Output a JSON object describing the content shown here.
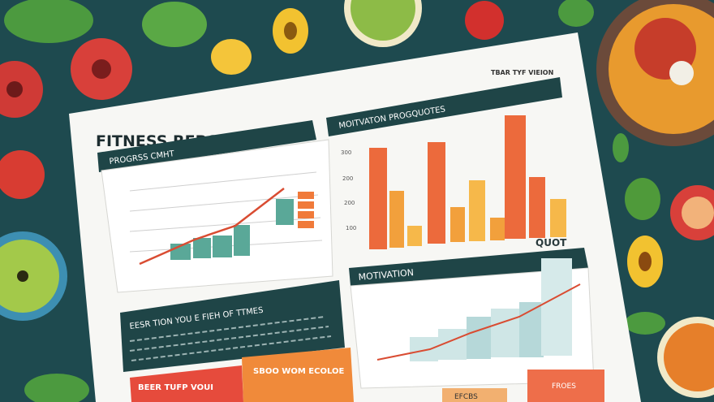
{
  "header": {
    "title": "FITNESS REPORT",
    "corner_note": "TBAR TYF VIEION"
  },
  "progress_panel": {
    "title": "PROGRSS CMHT"
  },
  "quotes_panel": {
    "title": "MOITVATON PROGQUOTES",
    "side_label": "QUOT",
    "axis_labels": [
      "300",
      "200",
      "200",
      "100"
    ]
  },
  "motivation_panel": {
    "title": "MOTIVATION"
  },
  "text_box": {
    "heading": "EESR TION YOU E FIEH OF TTMES"
  },
  "cards": [
    "BEER TUFP VOUI",
    "SBOO WOM ECOLOE",
    "EFCBS",
    "FROES"
  ]
}
